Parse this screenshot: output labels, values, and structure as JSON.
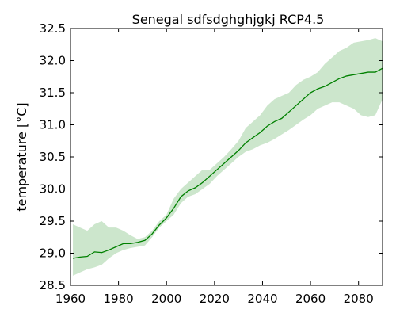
{
  "chart_data": {
    "type": "line",
    "title": "Senegal  sdfsdghghjgkj RCP4.5",
    "xlabel": "",
    "ylabel": "temperature [$^\\circ C$]",
    "ylabel_display": "temperature [°C]",
    "xlim": [
      1960,
      2090
    ],
    "ylim": [
      28.5,
      32.5
    ],
    "x_ticks": [
      "1960",
      "1980",
      "2000",
      "2020",
      "2040",
      "2060",
      "2080"
    ],
    "y_ticks": [
      "28.5",
      "29.0",
      "29.5",
      "30.0",
      "30.5",
      "31.0",
      "31.5",
      "32.0",
      "32.5"
    ],
    "grid": false,
    "series": [
      {
        "kind": "mean",
        "color": "#008000",
        "x": [
          1961,
          1964,
          1967,
          1970,
          1973,
          1976,
          1979,
          1982,
          1985,
          1988,
          1991,
          1994,
          1997,
          2000,
          2003,
          2006,
          2009,
          2012,
          2015,
          2018,
          2021,
          2024,
          2027,
          2030,
          2033,
          2036,
          2039,
          2042,
          2045,
          2048,
          2051,
          2054,
          2057,
          2060,
          2063,
          2066,
          2069,
          2072,
          2075,
          2078,
          2081,
          2084,
          2087,
          2090
        ],
        "values": [
          28.92,
          28.94,
          28.95,
          29.02,
          29.01,
          29.05,
          29.1,
          29.15,
          29.15,
          29.17,
          29.2,
          29.3,
          29.44,
          29.55,
          29.7,
          29.88,
          29.97,
          30.02,
          30.1,
          30.2,
          30.3,
          30.4,
          30.5,
          30.6,
          30.72,
          30.8,
          30.88,
          30.98,
          31.05,
          31.1,
          31.2,
          31.3,
          31.4,
          31.5,
          31.56,
          31.6,
          31.66,
          31.72,
          31.76,
          31.78,
          31.8,
          31.82,
          31.82,
          31.88
        ]
      },
      {
        "kind": "range",
        "color": "#008000",
        "opacity": 0.2,
        "x": [
          1961,
          1964,
          1967,
          1970,
          1973,
          1976,
          1979,
          1982,
          1985,
          1988,
          1991,
          1994,
          1997,
          2000,
          2003,
          2006,
          2009,
          2012,
          2015,
          2018,
          2021,
          2024,
          2027,
          2030,
          2033,
          2036,
          2039,
          2042,
          2045,
          2048,
          2051,
          2054,
          2057,
          2060,
          2063,
          2066,
          2069,
          2072,
          2075,
          2078,
          2081,
          2084,
          2087,
          2090
        ],
        "lower": [
          28.65,
          28.7,
          28.75,
          28.78,
          28.82,
          28.92,
          29.0,
          29.05,
          29.08,
          29.1,
          29.12,
          29.25,
          29.4,
          29.5,
          29.6,
          29.78,
          29.88,
          29.92,
          30.0,
          30.08,
          30.2,
          30.3,
          30.4,
          30.5,
          30.58,
          30.62,
          30.68,
          30.72,
          30.78,
          30.85,
          30.92,
          31.0,
          31.08,
          31.15,
          31.25,
          31.3,
          31.35,
          31.35,
          31.3,
          31.25,
          31.15,
          31.12,
          31.15,
          31.4
        ],
        "upper": [
          29.45,
          29.4,
          29.35,
          29.45,
          29.5,
          29.4,
          29.4,
          29.35,
          29.28,
          29.22,
          29.25,
          29.35,
          29.5,
          29.6,
          29.85,
          30.0,
          30.1,
          30.2,
          30.3,
          30.3,
          30.4,
          30.5,
          30.62,
          30.75,
          30.95,
          31.05,
          31.15,
          31.3,
          31.4,
          31.45,
          31.5,
          31.62,
          31.7,
          31.75,
          31.82,
          31.95,
          32.05,
          32.15,
          32.2,
          32.28,
          32.3,
          32.32,
          32.35,
          32.3
        ]
      }
    ]
  }
}
